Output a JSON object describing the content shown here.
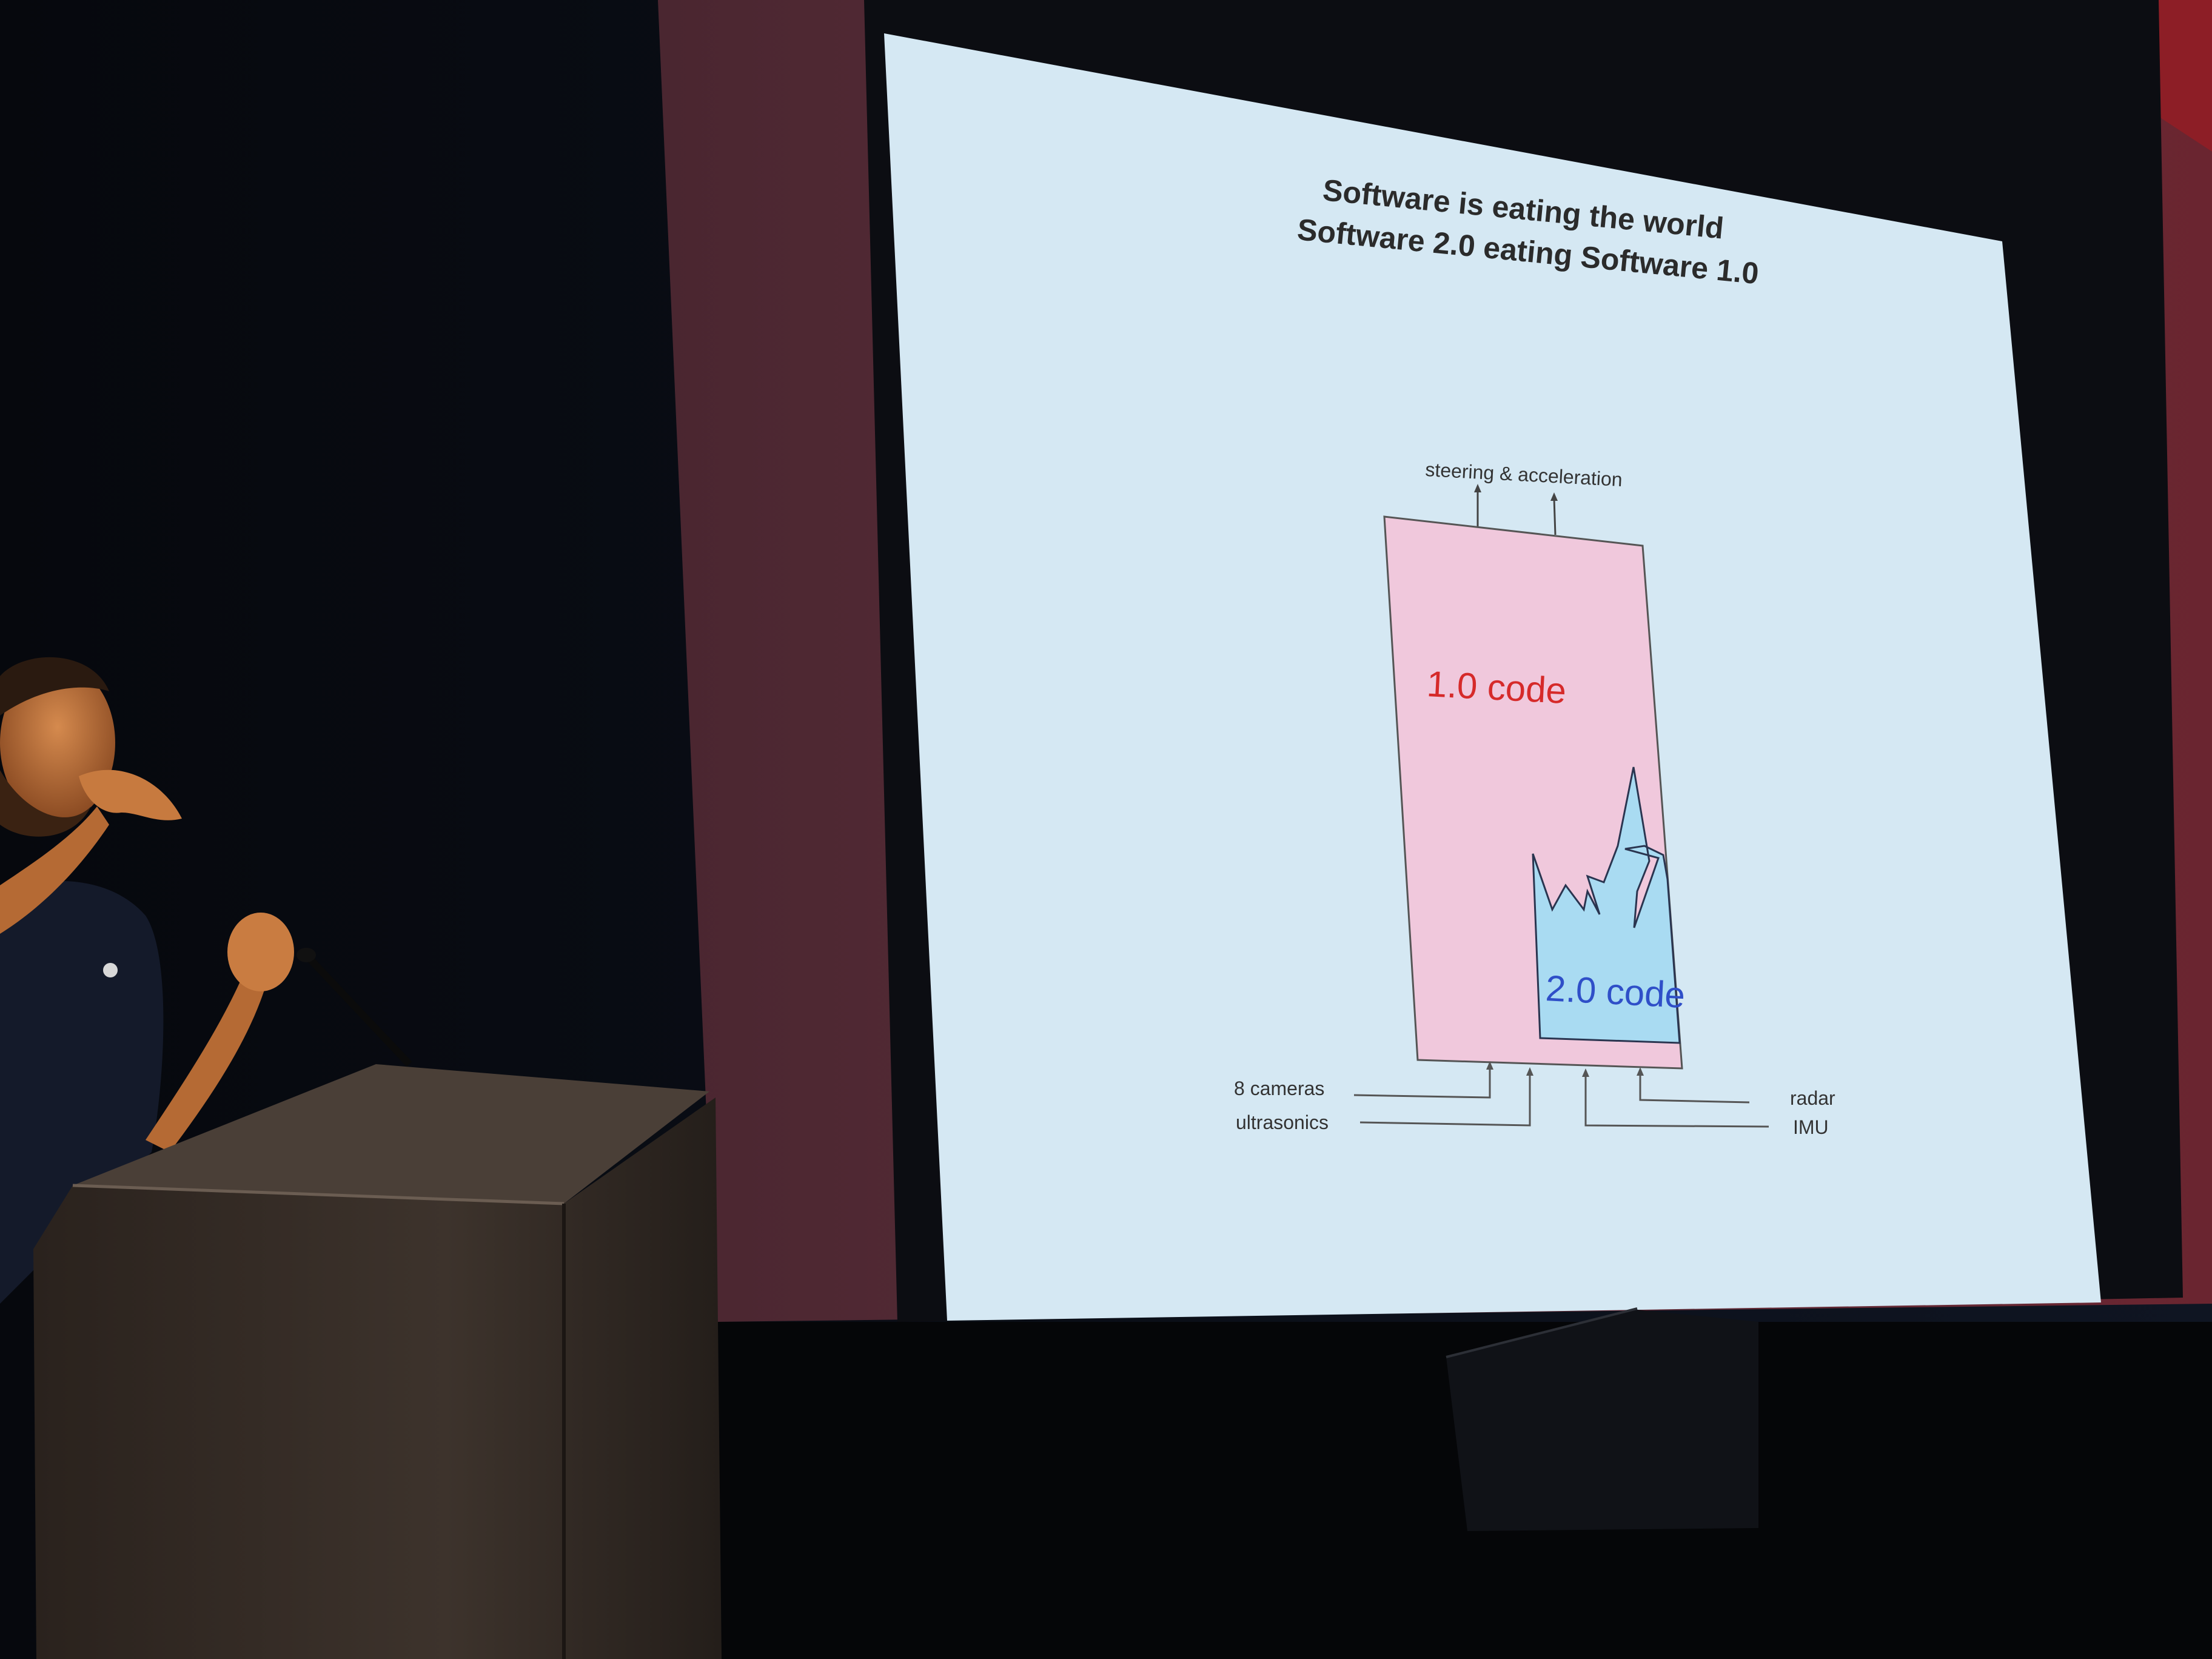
{
  "slide": {
    "title_line1": "Software is eating the world",
    "title_line2": "Software 2.0 eating Software 1.0"
  },
  "diagram": {
    "output_label": "steering & acceleration",
    "box_1_label": "1.0 code",
    "box_2_label": "2.0 code",
    "inputs_left": [
      "8 cameras",
      "ultrasonics"
    ],
    "inputs_right": [
      "radar",
      "IMU"
    ]
  },
  "colors": {
    "screen_background": "#d5e8f3",
    "box_1_fill": "#f0c8dc",
    "box_1_text": "#d62a2a",
    "box_2_fill": "#a9dbf2",
    "box_2_text": "#2f4fc8",
    "backdrop_red": "#5c2f3a",
    "room_dark": "#07090f"
  }
}
